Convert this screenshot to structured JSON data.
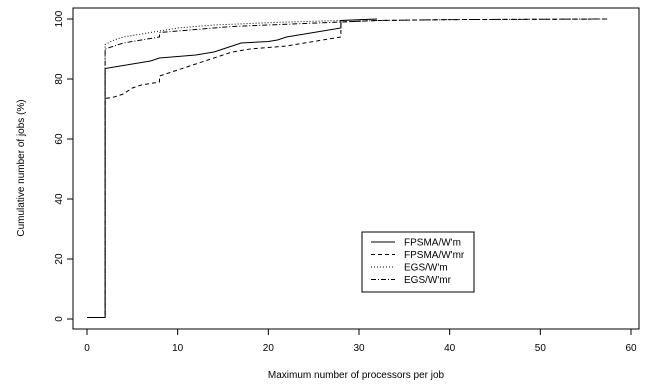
{
  "chart_data": {
    "type": "line",
    "title": "",
    "xlabel": "Maximum number of processors per job",
    "ylabel": "Cumulative number of jobs (%)",
    "xlim": [
      0,
      60
    ],
    "ylim": [
      0,
      100
    ],
    "xticks": [
      0,
      10,
      20,
      30,
      40,
      50,
      60
    ],
    "yticks": [
      0,
      20,
      40,
      60,
      80,
      100
    ],
    "grid": false,
    "legend_position": "lower-right",
    "series": [
      {
        "name": "FPSMA/W'm",
        "style": "solid",
        "color": "#000000",
        "points": [
          [
            0,
            0.5
          ],
          [
            2,
            0.5
          ],
          [
            2,
            83.5
          ],
          [
            3,
            84
          ],
          [
            4,
            84.5
          ],
          [
            5,
            85
          ],
          [
            6,
            85.5
          ],
          [
            7,
            86
          ],
          [
            8,
            87
          ],
          [
            10,
            87.5
          ],
          [
            12,
            88
          ],
          [
            14,
            89
          ],
          [
            15,
            90
          ],
          [
            16,
            91
          ],
          [
            17,
            92
          ],
          [
            20,
            92.5
          ],
          [
            21,
            93
          ],
          [
            22,
            94
          ],
          [
            24,
            95
          ],
          [
            26,
            96
          ],
          [
            28,
            97
          ],
          [
            28,
            99.5
          ],
          [
            32,
            100
          ]
        ]
      },
      {
        "name": "FPSMA/W'mr",
        "style": "dashed",
        "color": "#000000",
        "points": [
          [
            0,
            0.5
          ],
          [
            2,
            0.5
          ],
          [
            2,
            73.5
          ],
          [
            3,
            74
          ],
          [
            4,
            75
          ],
          [
            5,
            77
          ],
          [
            6,
            78
          ],
          [
            7,
            78.5
          ],
          [
            8,
            79
          ],
          [
            8,
            81
          ],
          [
            9,
            82
          ],
          [
            10,
            83
          ],
          [
            11,
            84
          ],
          [
            12,
            85
          ],
          [
            13,
            86
          ],
          [
            14,
            87
          ],
          [
            15,
            88
          ],
          [
            16,
            89
          ],
          [
            17,
            89.5
          ],
          [
            18,
            90
          ],
          [
            20,
            90.5
          ],
          [
            22,
            91
          ],
          [
            24,
            92
          ],
          [
            26,
            93
          ],
          [
            28,
            94
          ],
          [
            28,
            99
          ],
          [
            32,
            99.5
          ],
          [
            40,
            99.8
          ],
          [
            57.5,
            100
          ]
        ]
      },
      {
        "name": "EGS/W'm",
        "style": "dotted",
        "color": "#000000",
        "points": [
          [
            0,
            0.5
          ],
          [
            2,
            0.5
          ],
          [
            2,
            91.5
          ],
          [
            3,
            93
          ],
          [
            4,
            94
          ],
          [
            6,
            95
          ],
          [
            8,
            96
          ],
          [
            10,
            97
          ],
          [
            12,
            97.5
          ],
          [
            14,
            98
          ],
          [
            18,
            98.5
          ],
          [
            22,
            99
          ],
          [
            28,
            99.5
          ],
          [
            32,
            100
          ]
        ]
      },
      {
        "name": "EGS/W'mr",
        "style": "dashdot",
        "color": "#000000",
        "points": [
          [
            0,
            0.5
          ],
          [
            2,
            0.5
          ],
          [
            2,
            90
          ],
          [
            3,
            91
          ],
          [
            4,
            92
          ],
          [
            6,
            93
          ],
          [
            8,
            94
          ],
          [
            8,
            95.5
          ],
          [
            10,
            96
          ],
          [
            12,
            96.5
          ],
          [
            14,
            97
          ],
          [
            16,
            97.5
          ],
          [
            20,
            98
          ],
          [
            24,
            98.5
          ],
          [
            28,
            99
          ],
          [
            32,
            99.5
          ],
          [
            40,
            99.8
          ],
          [
            57.5,
            100
          ]
        ]
      }
    ]
  }
}
